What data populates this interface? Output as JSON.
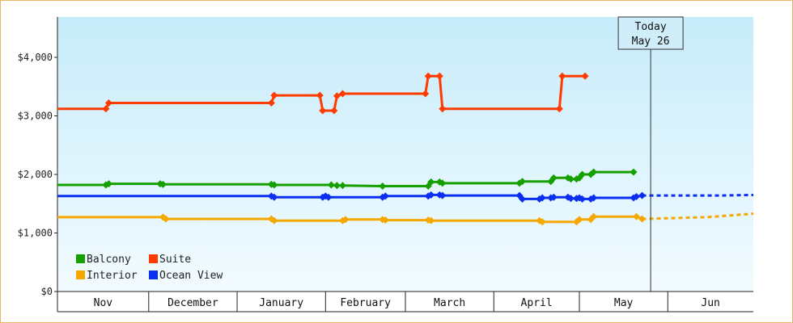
{
  "chart_data": {
    "type": "line",
    "x_unit": "date",
    "x_range": [
      "2018-10-30",
      "2019-07-01"
    ],
    "ylim": [
      0,
      4000
    ],
    "y_ticks": [
      {
        "value": 0,
        "label": "$0"
      },
      {
        "value": 1000,
        "label": "$1,000"
      },
      {
        "value": 2000,
        "label": "$2,000"
      },
      {
        "value": 3000,
        "label": "$3,000"
      },
      {
        "value": 4000,
        "label": "$4,000"
      }
    ],
    "month_labels": [
      {
        "label": "Nov",
        "start": "2018-10-30",
        "end": "2018-12-01"
      },
      {
        "label": "December",
        "start": "2018-12-01",
        "end": "2019-01-01"
      },
      {
        "label": "January",
        "start": "2019-01-01",
        "end": "2019-02-01"
      },
      {
        "label": "February",
        "start": "2019-02-01",
        "end": "2019-03-01"
      },
      {
        "label": "March",
        "start": "2019-03-01",
        "end": "2019-04-01"
      },
      {
        "label": "April",
        "start": "2019-04-01",
        "end": "2019-05-01"
      },
      {
        "label": "May",
        "start": "2019-05-01",
        "end": "2019-06-01"
      },
      {
        "label": "Jun",
        "start": "2019-06-01",
        "end": "2019-07-01"
      }
    ],
    "today": {
      "line1": "Today",
      "line2": "May 26",
      "date": "2019-05-26"
    },
    "grid": false,
    "legend": {
      "position": "bottom-left"
    },
    "series": [
      {
        "name": "Suite",
        "color": "#ff3b00",
        "points": [
          [
            "2018-10-30",
            3120
          ],
          [
            "2018-11-16",
            3120
          ],
          [
            "2018-11-17",
            3220
          ],
          [
            "2019-01-13",
            3220
          ],
          [
            "2019-01-14",
            3350
          ],
          [
            "2019-01-30",
            3350
          ],
          [
            "2019-01-31",
            3090
          ],
          [
            "2019-02-04",
            3090
          ],
          [
            "2019-02-05",
            3340
          ],
          [
            "2019-02-07",
            3380
          ],
          [
            "2019-03-08",
            3380
          ],
          [
            "2019-03-09",
            3680
          ],
          [
            "2019-03-13",
            3680
          ],
          [
            "2019-03-14",
            3120
          ],
          [
            "2019-04-16",
            3120
          ],
          [
            "2019-04-17",
            3120
          ],
          [
            "2019-04-24",
            3120
          ],
          [
            "2019-04-25",
            3680
          ],
          [
            "2019-05-03",
            3680
          ]
        ]
      },
      {
        "name": "Balcony",
        "color": "#16a000",
        "points": [
          [
            "2018-10-30",
            1820
          ],
          [
            "2018-11-16",
            1820
          ],
          [
            "2018-11-17",
            1840
          ],
          [
            "2018-12-05",
            1840
          ],
          [
            "2018-12-06",
            1830
          ],
          [
            "2019-01-13",
            1830
          ],
          [
            "2019-01-14",
            1820
          ],
          [
            "2019-02-03",
            1820
          ],
          [
            "2019-02-05",
            1810
          ],
          [
            "2019-02-07",
            1810
          ],
          [
            "2019-02-21",
            1800
          ],
          [
            "2019-02-22",
            1800
          ],
          [
            "2019-03-09",
            1800
          ],
          [
            "2019-03-10",
            1870
          ],
          [
            "2019-03-13",
            1870
          ],
          [
            "2019-03-14",
            1850
          ],
          [
            "2019-04-10",
            1850
          ],
          [
            "2019-04-11",
            1880
          ],
          [
            "2019-04-17",
            1880
          ],
          [
            "2019-04-18",
            1880
          ],
          [
            "2019-04-21",
            1880
          ],
          [
            "2019-04-22",
            1940
          ],
          [
            "2019-04-27",
            1940
          ],
          [
            "2019-04-28",
            1920
          ],
          [
            "2019-04-30",
            1920
          ],
          [
            "2019-05-01",
            1940
          ],
          [
            "2019-05-02",
            2000
          ],
          [
            "2019-05-05",
            2000
          ],
          [
            "2019-05-06",
            2040
          ],
          [
            "2019-05-20",
            2040
          ]
        ]
      },
      {
        "name": "Ocean View",
        "color": "#0a2ff0",
        "points": [
          [
            "2018-10-30",
            1630
          ],
          [
            "2018-11-17",
            1630
          ],
          [
            "2018-12-06",
            1630
          ],
          [
            "2019-01-13",
            1630
          ],
          [
            "2019-01-14",
            1610
          ],
          [
            "2019-01-31",
            1610
          ],
          [
            "2019-02-01",
            1630
          ],
          [
            "2019-02-02",
            1610
          ],
          [
            "2019-02-21",
            1610
          ],
          [
            "2019-02-22",
            1630
          ],
          [
            "2019-03-09",
            1630
          ],
          [
            "2019-03-10",
            1650
          ],
          [
            "2019-03-13",
            1650
          ],
          [
            "2019-03-14",
            1640
          ],
          [
            "2019-04-10",
            1640
          ],
          [
            "2019-04-11",
            1580
          ],
          [
            "2019-04-17",
            1580
          ],
          [
            "2019-04-18",
            1600
          ],
          [
            "2019-04-21",
            1600
          ],
          [
            "2019-04-22",
            1610
          ],
          [
            "2019-04-27",
            1610
          ],
          [
            "2019-04-28",
            1590
          ],
          [
            "2019-04-30",
            1590
          ],
          [
            "2019-05-01",
            1600
          ],
          [
            "2019-05-02",
            1580
          ],
          [
            "2019-05-05",
            1580
          ],
          [
            "2019-05-06",
            1600
          ],
          [
            "2019-05-20",
            1600
          ],
          [
            "2019-05-21",
            1620
          ],
          [
            "2019-05-23",
            1640
          ]
        ],
        "projection": [
          [
            "2019-05-23",
            1640
          ],
          [
            "2019-06-20",
            1640
          ],
          [
            "2019-07-01",
            1650
          ]
        ]
      },
      {
        "name": "Interior",
        "color": "#f5a800",
        "points": [
          [
            "2018-10-30",
            1270
          ],
          [
            "2018-12-06",
            1270
          ],
          [
            "2018-12-07",
            1240
          ],
          [
            "2019-01-13",
            1240
          ],
          [
            "2019-01-14",
            1210
          ],
          [
            "2019-02-07",
            1210
          ],
          [
            "2019-02-08",
            1230
          ],
          [
            "2019-02-21",
            1230
          ],
          [
            "2019-02-22",
            1220
          ],
          [
            "2019-03-09",
            1220
          ],
          [
            "2019-03-10",
            1210
          ],
          [
            "2019-04-17",
            1210
          ],
          [
            "2019-04-18",
            1190
          ],
          [
            "2019-04-30",
            1190
          ],
          [
            "2019-05-01",
            1230
          ],
          [
            "2019-05-05",
            1230
          ],
          [
            "2019-05-06",
            1280
          ],
          [
            "2019-05-21",
            1280
          ],
          [
            "2019-05-23",
            1240
          ]
        ],
        "projection": [
          [
            "2019-05-23",
            1240
          ],
          [
            "2019-06-15",
            1270
          ],
          [
            "2019-07-01",
            1330
          ]
        ]
      }
    ],
    "legend_entries": [
      {
        "name": "Balcony",
        "color": "#16a000"
      },
      {
        "name": "Suite",
        "color": "#ff3b00"
      },
      {
        "name": "Interior",
        "color": "#f5a800"
      },
      {
        "name": "Ocean View",
        "color": "#0a2ff0"
      }
    ]
  }
}
